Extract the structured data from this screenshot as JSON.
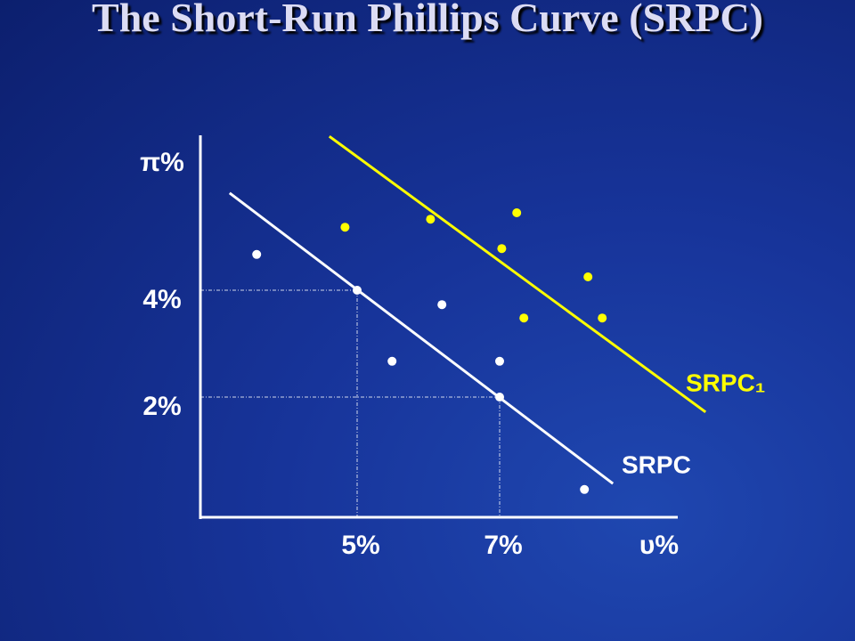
{
  "chart_data": {
    "type": "scatter",
    "title": "The Short-Run Phillips Curve (SRPC)",
    "xlabel": "υ%",
    "ylabel": "π%",
    "xlim": [
      2.8,
      9.5
    ],
    "ylim": [
      -0.25,
      6.9
    ],
    "xticks": [
      {
        "value": 5,
        "label": "5%"
      },
      {
        "value": 7,
        "label": "7%"
      }
    ],
    "yticks": [
      {
        "value": 4,
        "label": "4%"
      },
      {
        "value": 2,
        "label": "2%"
      }
    ],
    "series": [
      {
        "name": "SRPC",
        "color": "#ffffff",
        "type": "line",
        "x": [
          3.21,
          8.59
        ],
        "values": [
          5.82,
          0.38
        ]
      },
      {
        "name": "SRPC₁",
        "color": "#ffff00",
        "type": "line",
        "x": [
          4.61,
          9.89
        ],
        "values": [
          6.88,
          1.72
        ]
      },
      {
        "color": "#ffffff",
        "type": "scatter",
        "x": [
          3.59,
          5,
          6.19,
          5.49,
          7,
          7,
          8.19
        ],
        "values": [
          4.67,
          4,
          3.73,
          2.67,
          2.67,
          2,
          0.27
        ]
      },
      {
        "color": "#ffff00",
        "type": "scatter",
        "x": [
          4.83,
          6.03,
          7.24,
          7.03,
          8.24,
          7.34,
          8.44
        ],
        "values": [
          5.18,
          5.33,
          5.45,
          4.78,
          4.25,
          3.48,
          3.48
        ]
      }
    ]
  }
}
